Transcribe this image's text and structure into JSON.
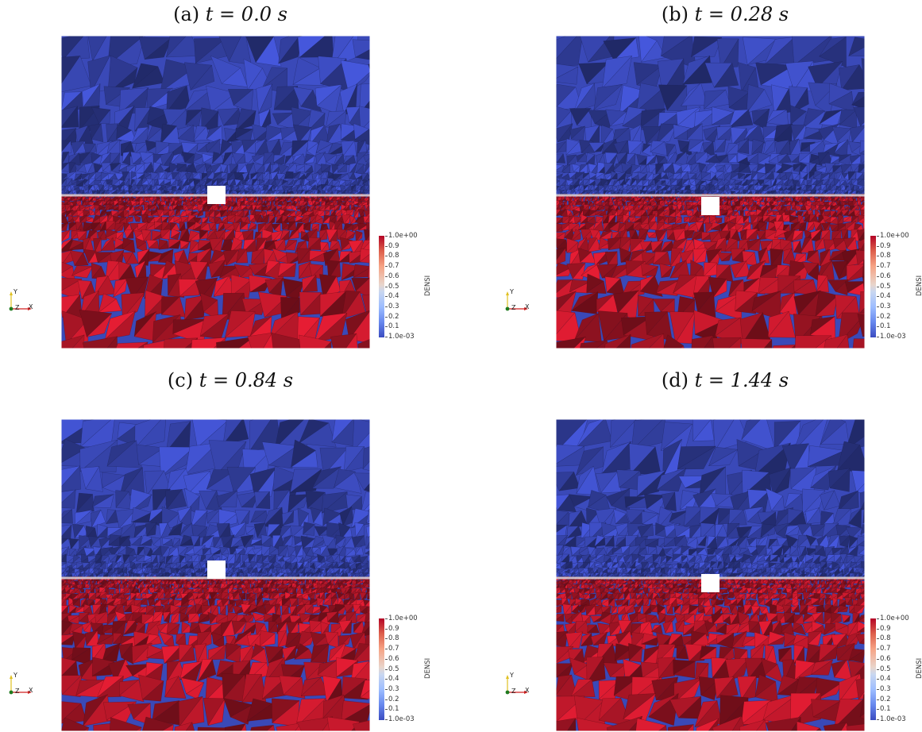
{
  "panels": [
    {
      "caption_prefix": "(a)",
      "time_label": "t = 0.0 s"
    },
    {
      "caption_prefix": "(b)",
      "time_label": "t = 0.28 s"
    },
    {
      "caption_prefix": "(c)",
      "time_label": "t = 0.84 s"
    },
    {
      "caption_prefix": "(d)",
      "time_label": "t = 1.44 s"
    }
  ],
  "colorbar": {
    "title": "DENSI",
    "labels": [
      "1.0e+00",
      "0.9",
      "0.8",
      "0.7",
      "0.6",
      "0.5",
      "0.4",
      "0.3",
      "0.2",
      "0.1",
      "1.0e-03"
    ],
    "colors": {
      "high": "#b40426",
      "mid": "#dddddd",
      "low": "#3b4cc0"
    }
  },
  "axes": {
    "y_label": "Y",
    "z_label": "Z",
    "x_label": "X"
  },
  "field_colors": {
    "dense_fluid": "#c0182b",
    "light_fluid": "#3a49b8",
    "interface": "#d9d9e0"
  }
}
